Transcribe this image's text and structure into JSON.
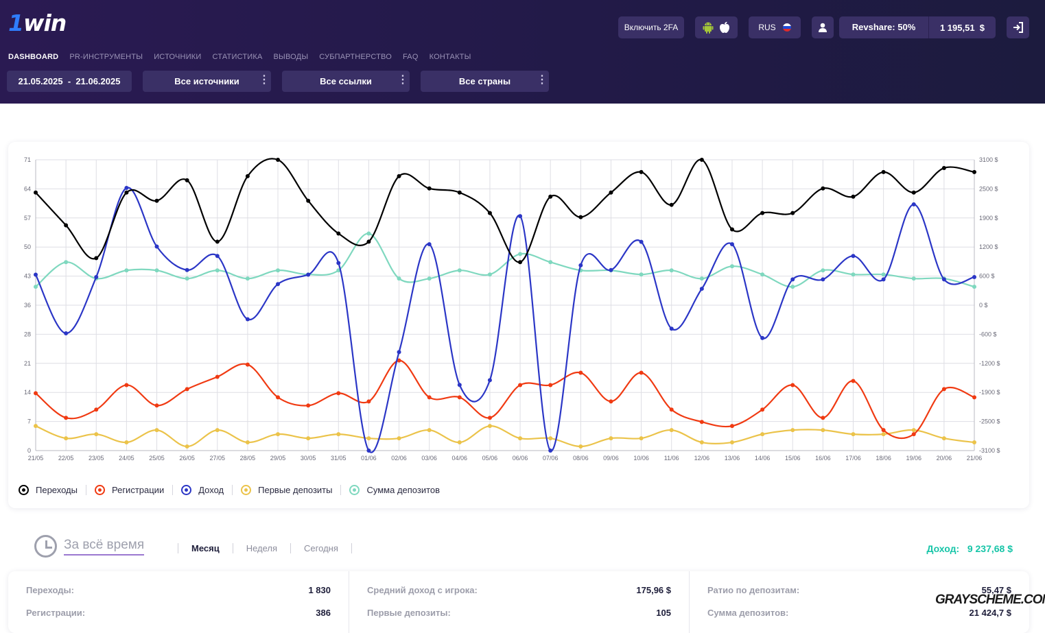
{
  "header": {
    "logo_text": "1win",
    "logo_one": "1",
    "logo_rest": "win",
    "nav": [
      "DASHBOARD",
      "PR-ИНСТРУМЕНТЫ",
      "ИСТОЧНИКИ",
      "СТАТИСТИКА",
      "ВЫВОДЫ",
      "СУБПАРТНЕРСТВО",
      "FAQ",
      "КОНТАКТЫ"
    ],
    "enable_2fa": "Включить 2FA",
    "language": "RUS",
    "revshare": "Revshare: 50%",
    "balance": "1 195,51  $",
    "filters": {
      "date_range": "21.05.2025  -  21.06.2025",
      "sources": "Все источники",
      "links": "Все ссылки",
      "countries": "Все страны"
    }
  },
  "colors": {
    "clicks": "#000000",
    "registrations": "#f03a12",
    "income": "#2b36c6",
    "first_deposits": "#ebc34a",
    "deposit_sum": "#7fd8bf",
    "accent_income": "#17c5a8"
  },
  "chart_data": {
    "type": "line",
    "x": [
      "21/05",
      "22/05",
      "23/05",
      "24/05",
      "25/05",
      "26/05",
      "27/05",
      "28/05",
      "29/05",
      "30/05",
      "31/05",
      "01/06",
      "02/06",
      "03/06",
      "04/06",
      "05/06",
      "06/06",
      "07/06",
      "08/06",
      "09/06",
      "10/06",
      "11/06",
      "12/06",
      "13/06",
      "14/06",
      "15/06",
      "16/06",
      "17/06",
      "18/06",
      "19/06",
      "20/06",
      "21/06"
    ],
    "y_left_ticks": [
      "0",
      "7",
      "14",
      "21",
      "28",
      "36",
      "43",
      "50",
      "57",
      "64",
      "71"
    ],
    "y_right_ticks": [
      "-3100 $",
      "-2500 $",
      "-1900 $",
      "-1200 $",
      "-600 $",
      "0 $",
      "600 $",
      "1200 $",
      "1900 $",
      "2500 $",
      "3100 $"
    ],
    "ylim_left": [
      0,
      71
    ],
    "ylim_right": [
      -3100,
      3100
    ],
    "grid": true,
    "series": [
      {
        "name": "Переходы",
        "axis": "left",
        "color_key": "clicks",
        "values": [
          63,
          55,
          47,
          63,
          61,
          66,
          51,
          67,
          71,
          61,
          53,
          51,
          67,
          64,
          63,
          58,
          46,
          62,
          57,
          63,
          68,
          60,
          71,
          54,
          58,
          58,
          64,
          62,
          68,
          63,
          69,
          68
        ]
      },
      {
        "name": "Регистрации",
        "axis": "left",
        "color_key": "registrations",
        "values": [
          14,
          8,
          10,
          16,
          11,
          15,
          18,
          21,
          13,
          11,
          14,
          12,
          22,
          13,
          13,
          8,
          16,
          16,
          19,
          12,
          19,
          10,
          7,
          6,
          10,
          16,
          8,
          17,
          5,
          4,
          15,
          13
        ]
      },
      {
        "name": "Доход",
        "axis": "right",
        "color_key": "income",
        "values": [
          650,
          -600,
          600,
          2500,
          1250,
          750,
          1050,
          -300,
          450,
          650,
          900,
          -3100,
          -1000,
          1300,
          -1700,
          -1600,
          1900,
          -3100,
          850,
          750,
          1350,
          -500,
          350,
          1300,
          -700,
          550,
          550,
          1050,
          550,
          2150,
          550,
          600
        ]
      },
      {
        "name": "Первые депозиты",
        "axis": "left",
        "color_key": "first_deposits",
        "values": [
          6,
          3,
          4,
          2,
          5,
          1,
          5,
          2,
          4,
          3,
          4,
          3,
          3,
          5,
          2,
          6,
          3,
          3,
          1,
          3,
          3,
          5,
          2,
          2,
          4,
          5,
          5,
          4,
          4,
          5,
          3,
          2
        ]
      },
      {
        "name": "Сумма депозитов",
        "axis": "left",
        "color_key": "deposit_sum",
        "values": [
          40,
          46,
          42,
          44,
          44,
          42,
          44,
          42,
          44,
          43,
          44,
          53,
          42,
          42,
          44,
          43,
          48,
          46,
          44,
          44,
          43,
          44,
          42,
          45,
          43,
          40,
          44,
          43,
          43,
          42,
          42,
          40
        ]
      }
    ]
  },
  "period": {
    "main": "За всё время",
    "tabs": [
      "Месяц",
      "Неделя",
      "Сегодня"
    ],
    "income_label": "Доход:",
    "income_value": "9 237,68 $"
  },
  "stats": {
    "col1": [
      {
        "k": "Переходы:",
        "v": "1 830"
      },
      {
        "k": "Регистрации:",
        "v": "386"
      }
    ],
    "col2": [
      {
        "k": "Средний доход с игрока:",
        "v": "175,96 $"
      },
      {
        "k": "Первые депозиты:",
        "v": "105"
      }
    ],
    "col3": [
      {
        "k": "Ратио по депозитам:",
        "v": "55,47 $"
      },
      {
        "k": "Сумма депозитов:",
        "v": "21 424,7 $"
      }
    ]
  },
  "watermark": "GRAYSCHEME.COM",
  "icons": [
    "android-icon",
    "apple-icon",
    "russia-flag-icon",
    "user-icon",
    "logout-icon",
    "clock-icon",
    "kebab-menu-icon"
  ]
}
